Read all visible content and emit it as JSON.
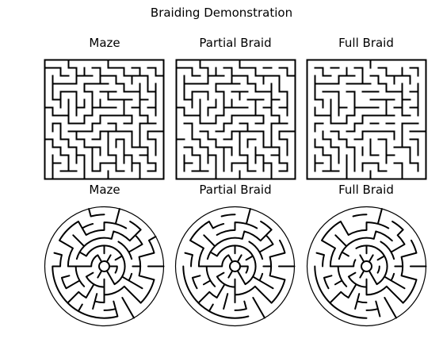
{
  "title": "Braiding Demonstration",
  "panels": [
    {
      "title": "Maze",
      "kind": "square",
      "variant": "maze"
    },
    {
      "title": "Partial Braid",
      "kind": "square",
      "variant": "partial"
    },
    {
      "title": "Full Braid",
      "kind": "square",
      "variant": "full"
    },
    {
      "title": "Maze",
      "kind": "circular",
      "variant": "maze"
    },
    {
      "title": "Partial Braid",
      "kind": "circular",
      "variant": "partial"
    },
    {
      "title": "Full Braid",
      "kind": "circular",
      "variant": "full"
    }
  ],
  "style": {
    "wall_color": "#000000",
    "background": "#ffffff"
  }
}
